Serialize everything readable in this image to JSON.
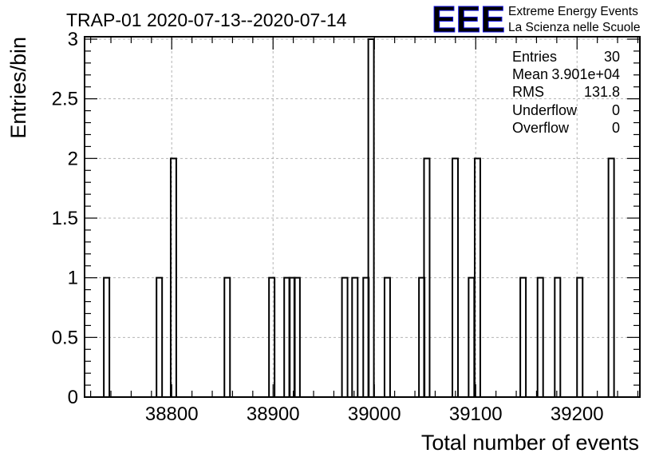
{
  "chart_data": {
    "type": "histogram",
    "title": "TRAP-01 2020-07-13--2020-07-14",
    "xlabel": "Total number of events",
    "ylabel": "Entries/bin",
    "xlim": [
      38714,
      39262
    ],
    "ylim": [
      0,
      3.02
    ],
    "grid": true,
    "x_ticks": [
      38800,
      38900,
      39000,
      39100,
      39200
    ],
    "x_tick_labels": [
      "38800",
      "38900",
      "39000",
      "39100",
      "39200"
    ],
    "y_ticks": [
      0,
      0.5,
      1,
      1.5,
      2,
      2.5,
      3
    ],
    "y_tick_labels": [
      "0",
      "0.5",
      "1",
      "1.5",
      "2",
      "2.5",
      "3"
    ],
    "bin_width": 5.5,
    "bins": [
      {
        "x": 38733,
        "count": 1
      },
      {
        "x": 38785,
        "count": 1
      },
      {
        "x": 38799,
        "count": 2
      },
      {
        "x": 38852,
        "count": 1
      },
      {
        "x": 38896,
        "count": 1
      },
      {
        "x": 38911,
        "count": 1
      },
      {
        "x": 38916,
        "count": 1
      },
      {
        "x": 38921,
        "count": 1
      },
      {
        "x": 38968,
        "count": 1
      },
      {
        "x": 38978,
        "count": 1
      },
      {
        "x": 38989,
        "count": 1
      },
      {
        "x": 38994,
        "count": 3
      },
      {
        "x": 39010,
        "count": 1
      },
      {
        "x": 39044,
        "count": 1
      },
      {
        "x": 39049,
        "count": 2
      },
      {
        "x": 39077,
        "count": 2
      },
      {
        "x": 39093,
        "count": 1
      },
      {
        "x": 39099,
        "count": 2
      },
      {
        "x": 39144,
        "count": 1
      },
      {
        "x": 39161,
        "count": 1
      },
      {
        "x": 39178,
        "count": 1
      },
      {
        "x": 39200,
        "count": 1
      },
      {
        "x": 39231,
        "count": 2
      }
    ],
    "stats": {
      "entries_label": "Entries",
      "entries": "30",
      "mean_label": "Mean",
      "mean": "3.901e+04",
      "rms_label": "RMS",
      "rms": "131.8",
      "underflow_label": "Underflow",
      "underflow": "0",
      "overflow_label": "Overflow",
      "overflow": "0"
    }
  },
  "logo": {
    "text": "EEE",
    "line1": "Extreme Energy Events",
    "line2": "La Scienza nelle Scuole",
    "color": "#1010e8"
  }
}
